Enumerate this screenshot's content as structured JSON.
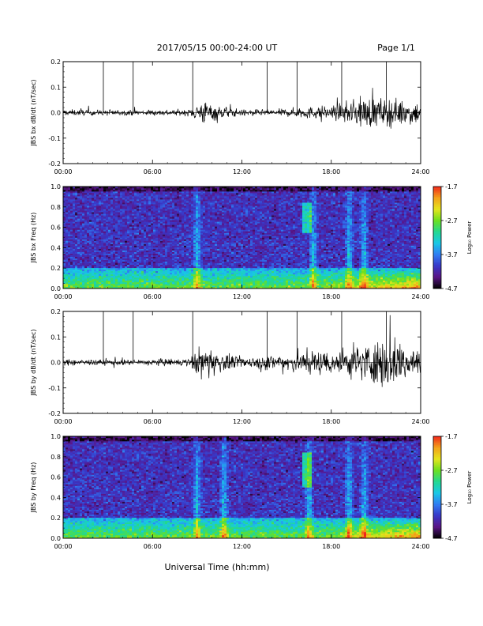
{
  "header": {
    "title": "2017/05/15  00:00-24:00 UT",
    "page": "Page 1/1"
  },
  "footer": {
    "xlabel": "Universal Time (hh:mm)"
  },
  "x_ticks": [
    "00:00",
    "06:00",
    "12:00",
    "18:00",
    "24:00"
  ],
  "colorbar": {
    "ticks": [
      "-1.7",
      "-2.7",
      "-3.7",
      "-4.7"
    ],
    "label": "Log₁₀ Power"
  },
  "colors": {
    "trace": "#000000",
    "colormap": [
      "#000000",
      "#5a1486",
      "#3838c8",
      "#2f7df2",
      "#18c8e6",
      "#22d890",
      "#6ce01f",
      "#e5e41c",
      "#f3a11a",
      "#f0261a"
    ]
  },
  "chart_data": [
    {
      "type": "line",
      "ylabel": "JBS bx dB/dt (nT/sec)",
      "xlim": [
        0,
        24
      ],
      "ylim": [
        -0.2,
        0.2
      ],
      "y_ticks": [
        "0.2",
        "0.1",
        "0.0",
        "-0.1",
        "-0.2"
      ],
      "y_tick_values": [
        0.2,
        0.1,
        0.0,
        -0.1,
        -0.2
      ],
      "marker_lines_hours": [
        2.7,
        4.7,
        8.7,
        13.7,
        15.7,
        18.7,
        21.7
      ],
      "activity_envelope": [
        {
          "hour": 0,
          "amp": 0.012
        },
        {
          "hour": 4,
          "amp": 0.01
        },
        {
          "hour": 8.5,
          "amp": 0.012
        },
        {
          "hour": 9.3,
          "amp": 0.05
        },
        {
          "hour": 10.5,
          "amp": 0.025
        },
        {
          "hour": 12,
          "amp": 0.012
        },
        {
          "hour": 14,
          "amp": 0.012
        },
        {
          "hour": 16,
          "amp": 0.02
        },
        {
          "hour": 18.5,
          "amp": 0.03
        },
        {
          "hour": 20,
          "amp": 0.06
        },
        {
          "hour": 22,
          "amp": 0.055
        },
        {
          "hour": 24,
          "amp": 0.045
        }
      ]
    },
    {
      "type": "heatmap",
      "ylabel": "JBS bx Freq (Hz)",
      "xlim": [
        0,
        24
      ],
      "ylim": [
        0.0,
        1.0
      ],
      "y_ticks": [
        "1.0",
        "0.8",
        "0.6",
        "0.4",
        "0.2",
        "0.0"
      ],
      "y_tick_values": [
        1.0,
        0.8,
        0.6,
        0.4,
        0.2,
        0.0
      ],
      "color_range": [
        -4.7,
        -1.7
      ],
      "background_power": -4.1,
      "low_frequency_band_hz": [
        0.0,
        0.2
      ],
      "bright_columns_hours": [
        9.0,
        16.8,
        19.2,
        20.2
      ],
      "blob_feature": {
        "hour": 16.4,
        "freq_range": [
          0.55,
          0.85
        ]
      }
    },
    {
      "type": "line",
      "ylabel": "JBS by dB/dt (nT/sec)",
      "xlim": [
        0,
        24
      ],
      "ylim": [
        -0.2,
        0.2
      ],
      "y_ticks": [
        "0.2",
        "0.1",
        "0.0",
        "-0.1",
        "-0.2"
      ],
      "y_tick_values": [
        0.2,
        0.1,
        0.0,
        -0.1,
        -0.2
      ],
      "marker_lines_hours": [
        2.7,
        4.7,
        8.7,
        13.7,
        15.7,
        18.7,
        21.7
      ],
      "activity_envelope": [
        {
          "hour": 0,
          "amp": 0.012
        },
        {
          "hour": 4,
          "amp": 0.01
        },
        {
          "hour": 8.5,
          "amp": 0.015
        },
        {
          "hour": 9.3,
          "amp": 0.07
        },
        {
          "hour": 10.5,
          "amp": 0.04
        },
        {
          "hour": 12,
          "amp": 0.02
        },
        {
          "hour": 14,
          "amp": 0.03
        },
        {
          "hour": 16,
          "amp": 0.045
        },
        {
          "hour": 18.5,
          "amp": 0.05
        },
        {
          "hour": 20,
          "amp": 0.07
        },
        {
          "hour": 22,
          "amp": 0.1
        },
        {
          "hour": 24,
          "amp": 0.06
        }
      ]
    },
    {
      "type": "heatmap",
      "ylabel": "JBS by Freq (Hz)",
      "xlim": [
        0,
        24
      ],
      "ylim": [
        0.0,
        1.0
      ],
      "y_ticks": [
        "1.0",
        "0.8",
        "0.6",
        "0.4",
        "0.2",
        "0.0"
      ],
      "y_tick_values": [
        1.0,
        0.8,
        0.6,
        0.4,
        0.2,
        0.0
      ],
      "color_range": [
        -4.7,
        -1.7
      ],
      "background_power": -4.1,
      "low_frequency_band_hz": [
        0.0,
        0.2
      ],
      "bright_columns_hours": [
        9.0,
        10.8,
        16.5,
        19.2,
        20.2
      ],
      "blob_feature": {
        "hour": 16.4,
        "freq_range": [
          0.5,
          0.85
        ]
      }
    }
  ]
}
